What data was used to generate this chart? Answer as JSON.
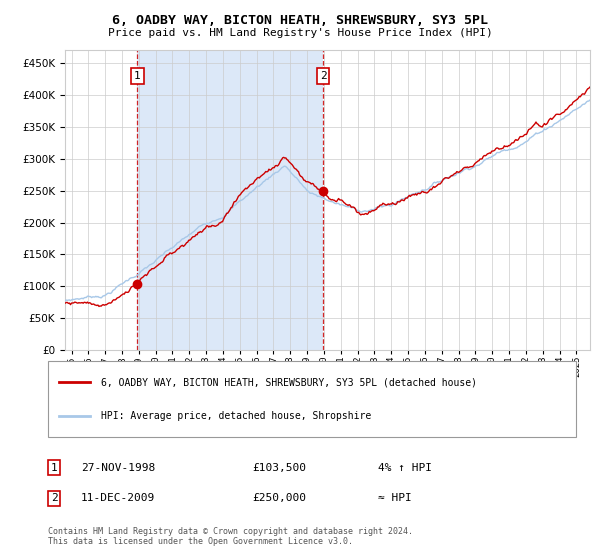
{
  "title": "6, OADBY WAY, BICTON HEATH, SHREWSBURY, SY3 5PL",
  "subtitle": "Price paid vs. HM Land Registry's House Price Index (HPI)",
  "legend_line1": "6, OADBY WAY, BICTON HEATH, SHREWSBURY, SY3 5PL (detached house)",
  "legend_line2": "HPI: Average price, detached house, Shropshire",
  "annotation1_label": "1",
  "annotation1_date": "27-NOV-1998",
  "annotation1_price": "£103,500",
  "annotation1_hpi": "4% ↑ HPI",
  "annotation2_label": "2",
  "annotation2_date": "11-DEC-2009",
  "annotation2_price": "£250,000",
  "annotation2_hpi": "≈ HPI",
  "footer1": "Contains HM Land Registry data © Crown copyright and database right 2024.",
  "footer2": "This data is licensed under the Open Government Licence v3.0.",
  "sale1_year": 1998.92,
  "sale1_value": 103500,
  "sale2_year": 2009.95,
  "sale2_value": 250000,
  "hpi_color": "#a8c8e8",
  "price_color": "#cc0000",
  "grid_color": "#cccccc",
  "ylim": [
    0,
    470000
  ],
  "xlim_start": 1994.6,
  "xlim_end": 2025.8,
  "highlight_color": "#dce8f8"
}
